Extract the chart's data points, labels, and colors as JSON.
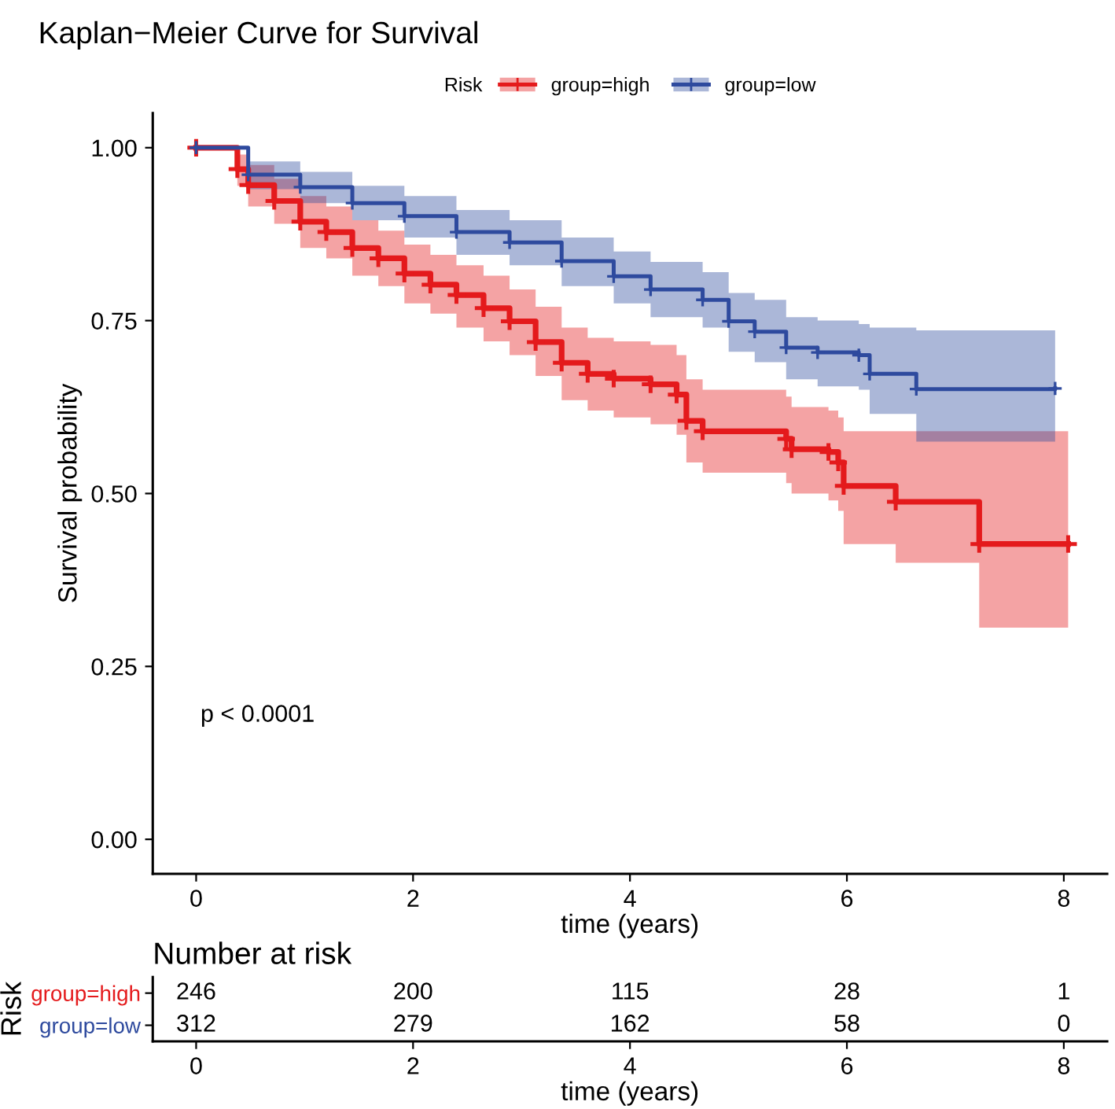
{
  "chart_data": [
    {
      "type": "step",
      "title": "Kaplan−Meier Curve for Survival",
      "xlabel": "time (years)",
      "ylabel": "Survival probability",
      "legend_title": "Risk",
      "legend": "top",
      "marker": "cross",
      "xlim": [
        -0.4,
        8.4
      ],
      "ylim": [
        -0.05,
        1.05
      ],
      "xticks": [
        0,
        2,
        4,
        6,
        8
      ],
      "yticks": [
        {
          "value": 0,
          "label": "0.00"
        },
        {
          "value": 0.25,
          "label": "0.25"
        },
        {
          "value": 0.5,
          "label": "0.50"
        },
        {
          "value": 0.75,
          "label": "0.75"
        },
        {
          "value": 1,
          "label": "1.00"
        }
      ],
      "grid": false,
      "annotations": [
        "p < 0.0001"
      ],
      "series": [
        {
          "name": "group=high",
          "color": "#e41a1c",
          "x": [
            0,
            0.38,
            0.48,
            0.72,
            0.96,
            1.2,
            1.44,
            1.68,
            1.92,
            2.16,
            2.4,
            2.65,
            2.89,
            3.13,
            3.37,
            3.61,
            3.85,
            4.19,
            4.43,
            4.52,
            4.67,
            5.44,
            5.49,
            5.83,
            5.92,
            5.97,
            6.45,
            7.22,
            8.04
          ],
          "values": [
            1,
            0.969,
            0.946,
            0.923,
            0.893,
            0.878,
            0.855,
            0.84,
            0.818,
            0.802,
            0.787,
            0.768,
            0.749,
            0.719,
            0.689,
            0.673,
            0.666,
            0.658,
            0.643,
            0.605,
            0.59,
            0.579,
            0.564,
            0.56,
            0.545,
            0.511,
            0.488,
            0.427,
            0.427
          ],
          "upper": [
            1,
            0.99,
            0.975,
            0.955,
            0.93,
            0.915,
            0.895,
            0.88,
            0.86,
            0.845,
            0.83,
            0.815,
            0.795,
            0.77,
            0.74,
            0.725,
            0.72,
            0.715,
            0.7,
            0.665,
            0.65,
            0.64,
            0.625,
            0.62,
            0.61,
            0.59,
            0.59,
            0.59,
            0.59
          ],
          "lower": [
            1,
            0.945,
            0.915,
            0.89,
            0.855,
            0.84,
            0.815,
            0.8,
            0.775,
            0.76,
            0.74,
            0.72,
            0.7,
            0.67,
            0.635,
            0.62,
            0.61,
            0.6,
            0.585,
            0.545,
            0.53,
            0.515,
            0.5,
            0.49,
            0.475,
            0.427,
            0.4,
            0.306,
            0.306
          ]
        },
        {
          "name": "group=low",
          "color": "#2e4a9e",
          "x": [
            0,
            0.48,
            0.96,
            1.44,
            1.92,
            2.4,
            2.89,
            3.37,
            3.85,
            4.19,
            4.67,
            4.91,
            5.15,
            5.44,
            5.73,
            6.11,
            6.21,
            6.64,
            7.92
          ],
          "values": [
            1,
            0.961,
            0.943,
            0.92,
            0.901,
            0.878,
            0.863,
            0.836,
            0.814,
            0.795,
            0.78,
            0.749,
            0.734,
            0.711,
            0.704,
            0.7,
            0.673,
            0.651,
            0.652
          ],
          "upper": [
            1,
            0.98,
            0.965,
            0.945,
            0.93,
            0.91,
            0.895,
            0.87,
            0.85,
            0.835,
            0.82,
            0.79,
            0.78,
            0.755,
            0.75,
            0.745,
            0.74,
            0.736,
            0.736
          ],
          "lower": [
            1,
            0.94,
            0.92,
            0.895,
            0.87,
            0.845,
            0.83,
            0.8,
            0.775,
            0.755,
            0.74,
            0.705,
            0.69,
            0.665,
            0.655,
            0.65,
            0.615,
            0.575,
            0.575
          ]
        }
      ]
    },
    {
      "type": "heatmap",
      "title": "Number at risk",
      "xlabel": "time (years)",
      "ylabel": "Risk",
      "categories": [
        "0",
        "2",
        "4",
        "6",
        "8"
      ],
      "y_categories": [
        "group=high",
        "group=low"
      ],
      "colors": [
        "#e41a1c",
        "#2e4a9e"
      ],
      "data_labels": true,
      "cells": [
        [
          246,
          200,
          115,
          28,
          1
        ],
        [
          312,
          279,
          162,
          58,
          0
        ]
      ]
    }
  ]
}
